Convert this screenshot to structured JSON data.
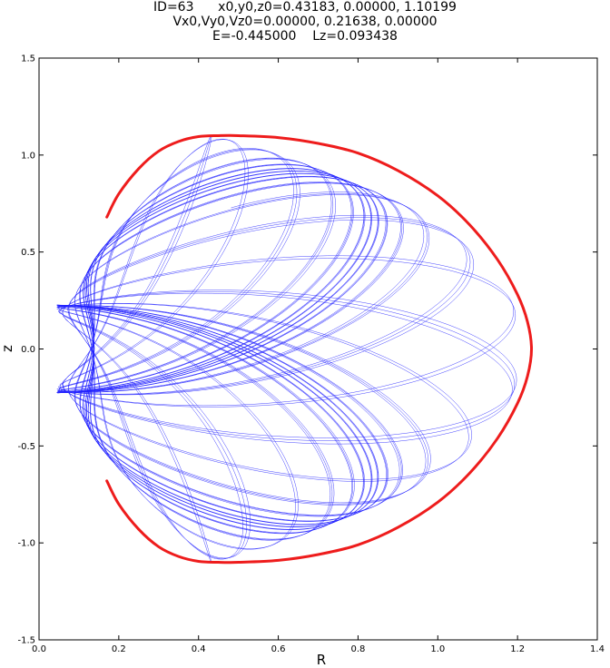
{
  "title_lines": [
    "ID=63      x0,y0,z0=0.43183, 0.00000, 1.10199",
    "Vx0,Vy0,Vz0=0.00000, 0.21638, 0.00000",
    "E=-0.445000    Lz=0.093438"
  ],
  "chart_data": {
    "type": "line",
    "xlabel": "R",
    "ylabel": "z",
    "xlim": [
      0.0,
      1.4
    ],
    "ylim": [
      -1.5,
      1.5
    ],
    "x_ticks": [
      "0.0",
      "0.2",
      "0.4",
      "0.6",
      "0.8",
      "1.0",
      "1.2",
      "1.4"
    ],
    "y_ticks": [
      "1.5",
      "1.0",
      "0.5",
      "0.0",
      "-0.5",
      "-1.0",
      "-1.5"
    ],
    "grid": false,
    "series": [
      {
        "type": "boundary",
        "color": "#ee1c1c",
        "x": [
          0.17,
          0.2,
          0.25,
          0.3,
          0.35,
          0.4,
          0.45,
          0.5,
          0.6,
          0.7,
          0.8,
          0.9,
          1.0,
          1.08,
          1.15,
          1.2,
          1.225,
          1.235,
          1.225,
          1.2,
          1.15,
          1.08,
          1.0,
          0.9,
          0.8,
          0.7,
          0.6,
          0.5,
          0.45,
          0.4,
          0.35,
          0.3,
          0.25,
          0.2,
          0.17
        ],
        "y": [
          0.68,
          0.8,
          0.93,
          1.02,
          1.07,
          1.095,
          1.1,
          1.1,
          1.09,
          1.06,
          1.01,
          0.92,
          0.79,
          0.64,
          0.46,
          0.28,
          0.14,
          0.0,
          -0.14,
          -0.28,
          -0.46,
          -0.64,
          -0.79,
          -0.92,
          -1.01,
          -1.06,
          -1.09,
          -1.1,
          -1.1,
          -1.095,
          -1.07,
          -1.02,
          -0.93,
          -0.8,
          -0.68
        ]
      },
      {
        "type": "orbit",
        "color": "#2222ff",
        "R0": 0.43183,
        "z0": 1.10199,
        "Vphi0": 0.21638,
        "E": -0.445,
        "Lz": 0.093438
      }
    ]
  }
}
